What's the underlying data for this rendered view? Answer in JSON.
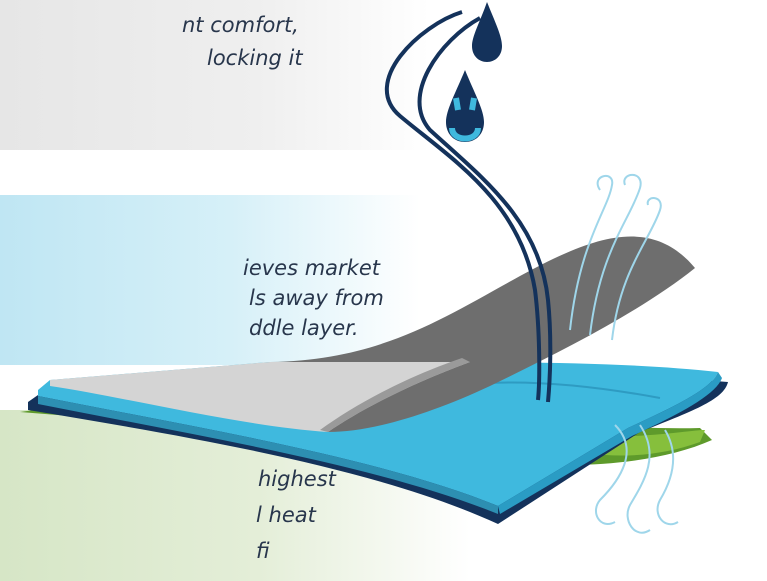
{
  "layers": {
    "top": {
      "lines": [
        "nt comfort,",
        "locking it"
      ]
    },
    "middle": {
      "lines": [
        "ieves market",
        "ls away from",
        "ddle layer."
      ]
    },
    "bottom": {
      "lines": [
        "highest",
        "l heat",
        "fi"
      ]
    }
  },
  "colors": {
    "navy": "#14325b",
    "blue": "#3fb9de",
    "gray": "#6e6e6e",
    "silver": "#d4d4d4",
    "green": "#5e9a2b",
    "wind": "#9fd6ea"
  },
  "icons": [
    "water-drop-icon",
    "wind-lines-icon",
    "fabric-layers-illustration"
  ]
}
